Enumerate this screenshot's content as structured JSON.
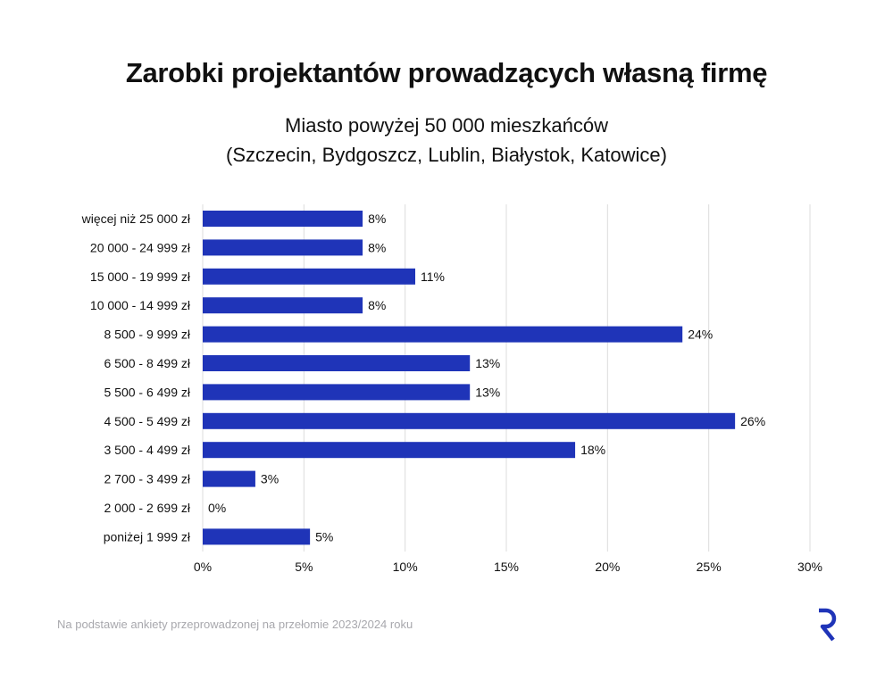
{
  "title": "Zarobki projektantów prowadzących własną firmę",
  "subtitle_line1": "Miasto powyżej 50 000 mieszkańców",
  "subtitle_line2": "(Szczecin, Bydgoszcz, Lublin, Białystok, Katowice)",
  "footnote": "Na podstawie ankiety przeprowadzonej na przełomie 2023/2024 roku",
  "colors": {
    "bar": "#1f34b8",
    "grid": "#dcdcdc",
    "logo": "#1f34b8"
  },
  "logo_icon": "r-logo-icon",
  "chart_data": {
    "type": "bar",
    "orientation": "horizontal",
    "categories": [
      "więcej niż 25 000 zł",
      "20 000 - 24 999 zł",
      "15 000 - 19 999 zł",
      "10 000 - 14 999 zł",
      "8 500 - 9 999 zł",
      "6 500 - 8 499 zł",
      "5 500 - 6 499 zł",
      "4 500 - 5 499 zł",
      "3 500 - 4 499 zł",
      "2 700 - 3 499 zł",
      "2 000 - 2 699 zł",
      "poniżej 1 999 zł"
    ],
    "values": [
      7.9,
      7.9,
      10.5,
      7.9,
      23.7,
      13.2,
      13.2,
      26.3,
      18.4,
      2.6,
      0,
      5.3
    ],
    "data_labels": [
      "8%",
      "8%",
      "11%",
      "8%",
      "24%",
      "13%",
      "13%",
      "26%",
      "18%",
      "3%",
      "0%",
      "5%"
    ],
    "xlim": [
      0,
      30
    ],
    "x_ticks": [
      0,
      5,
      10,
      15,
      20,
      25,
      30
    ],
    "x_tick_labels": [
      "0%",
      "5%",
      "10%",
      "15%",
      "20%",
      "25%",
      "30%"
    ],
    "grid": true,
    "legend": "none"
  }
}
